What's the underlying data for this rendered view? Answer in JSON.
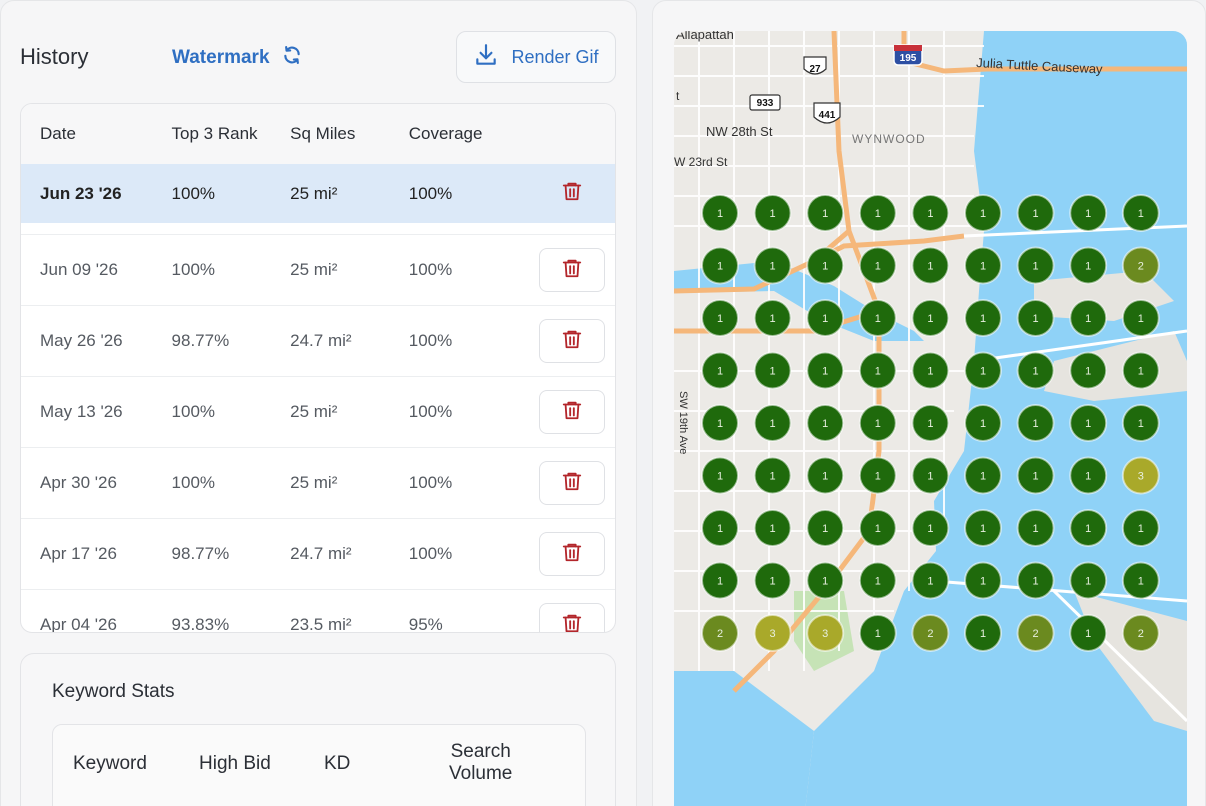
{
  "history": {
    "title": "History",
    "watermark_label": "Watermark",
    "render_label": "Render Gif",
    "columns": [
      "Date",
      "Top 3 Rank",
      "Sq Miles",
      "Coverage"
    ],
    "rows": [
      {
        "date": "Jun 23 '26",
        "rank": "100%",
        "miles": "25 mi²",
        "coverage": "100%",
        "selected": true
      },
      {
        "date": "Jun 09 '26",
        "rank": "100%",
        "miles": "25 mi²",
        "coverage": "100%"
      },
      {
        "date": "May 26 '26",
        "rank": "98.77%",
        "miles": "24.7 mi²",
        "coverage": "100%"
      },
      {
        "date": "May 13 '26",
        "rank": "100%",
        "miles": "25 mi²",
        "coverage": "100%"
      },
      {
        "date": "Apr 30 '26",
        "rank": "100%",
        "miles": "25 mi²",
        "coverage": "100%"
      },
      {
        "date": "Apr 17 '26",
        "rank": "98.77%",
        "miles": "24.7 mi²",
        "coverage": "100%"
      },
      {
        "date": "Apr 04 '26",
        "rank": "93.83%",
        "miles": "23.5 mi²",
        "coverage": "95%"
      }
    ]
  },
  "keyword_stats": {
    "title": "Keyword Stats",
    "columns": [
      "Keyword",
      "High Bid",
      "KD",
      "Search",
      "Volume"
    ]
  },
  "map": {
    "labels": {
      "top_left": "Allapattah",
      "causeway": "Julia Tuttle Causeway",
      "i195": "195",
      "us27": "27",
      "r933": "933",
      "us441": "441",
      "nw28": "NW 28th St",
      "wynwood": "WYNWOOD",
      "nw23": "W 23rd St",
      "sw19": "SW 19th Ave",
      "t": "t"
    },
    "rank_grid": [
      [
        1,
        1,
        1,
        1,
        1,
        1,
        1,
        1,
        1
      ],
      [
        1,
        1,
        1,
        1,
        1,
        1,
        1,
        1,
        2
      ],
      [
        1,
        1,
        1,
        1,
        1,
        1,
        1,
        1,
        1
      ],
      [
        1,
        1,
        1,
        1,
        1,
        1,
        1,
        1,
        1
      ],
      [
        1,
        1,
        1,
        1,
        1,
        1,
        1,
        1,
        1
      ],
      [
        1,
        1,
        1,
        1,
        1,
        1,
        1,
        1,
        3
      ],
      [
        1,
        1,
        1,
        1,
        1,
        1,
        1,
        1,
        1
      ],
      [
        1,
        1,
        1,
        1,
        1,
        1,
        1,
        1,
        1
      ],
      [
        2,
        3,
        3,
        1,
        2,
        1,
        2,
        1,
        2
      ]
    ],
    "rank_colors": {
      "1": "#1f6a0c",
      "2": "#6b8a1f",
      "3": "#a9a92a"
    }
  },
  "colors": {
    "accent": "#2f6fc2",
    "danger": "#b3262b",
    "selected_row": "#dce9f8"
  }
}
